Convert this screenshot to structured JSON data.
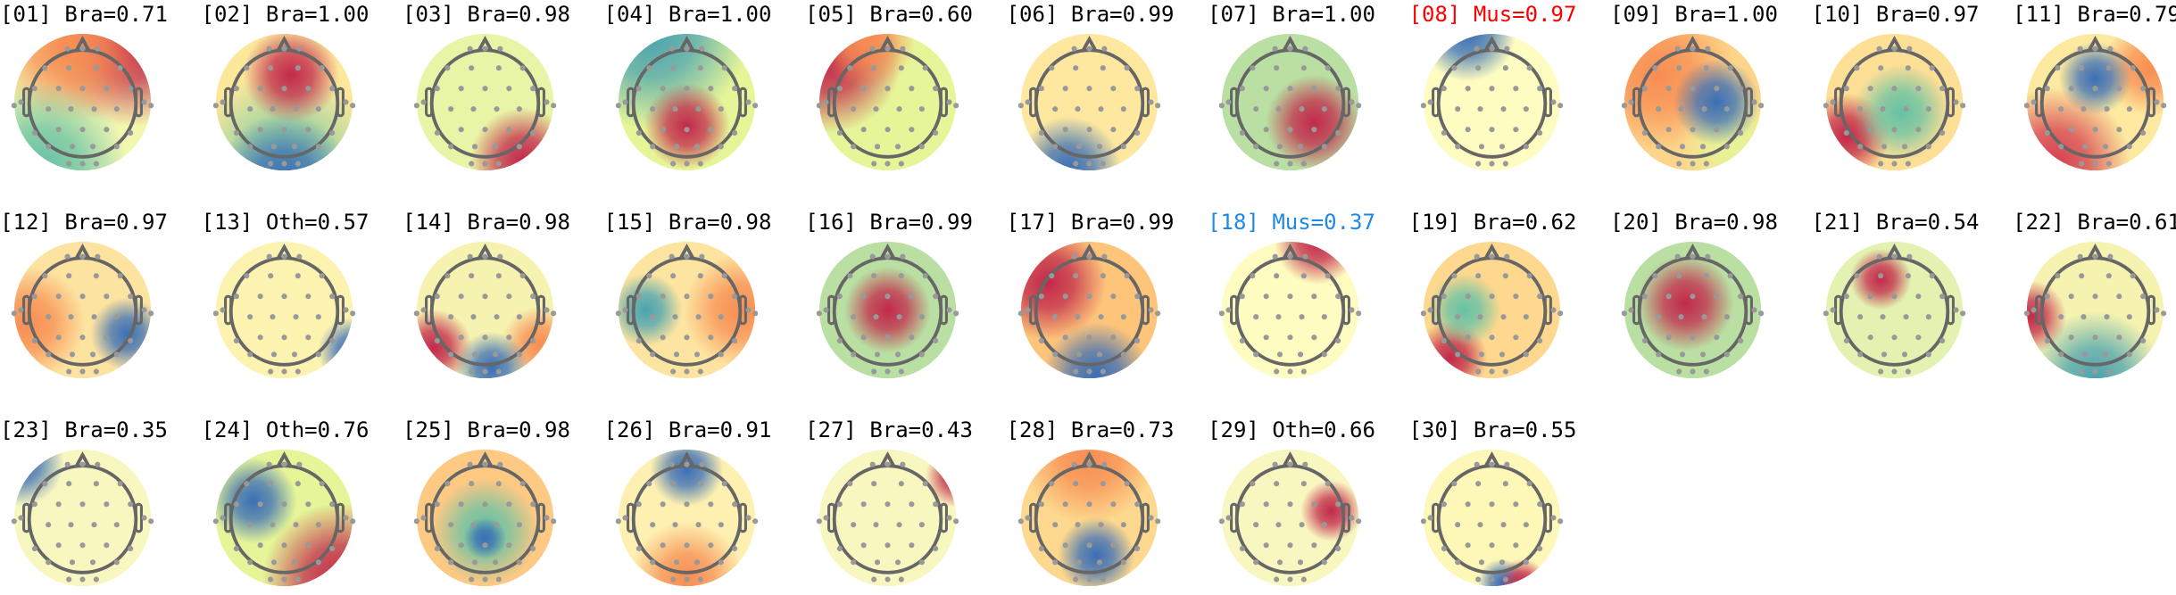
{
  "chart_data": {
    "type": "heatmap",
    "description_kind": "topomap-grid",
    "colormap": "spectral (red positive, blue negative)",
    "label_colors": {
      "default": "#000000",
      "Mus_high": "#ff0000",
      "Mus_low": "#1e88e5"
    },
    "components": [
      {
        "title": "[01] Bra=0.71",
        "label": "Bra",
        "score": 0.71,
        "color": "#000000"
      },
      {
        "title": "[02] Bra=1.00",
        "label": "Bra",
        "score": 1.0,
        "color": "#000000"
      },
      {
        "title": "[03] Bra=0.98",
        "label": "Bra",
        "score": 0.98,
        "color": "#000000"
      },
      {
        "title": "[04] Bra=1.00",
        "label": "Bra",
        "score": 1.0,
        "color": "#000000"
      },
      {
        "title": "[05] Bra=0.60",
        "label": "Bra",
        "score": 0.6,
        "color": "#000000"
      },
      {
        "title": "[06] Bra=0.99",
        "label": "Bra",
        "score": 0.99,
        "color": "#000000"
      },
      {
        "title": "[07] Bra=1.00",
        "label": "Bra",
        "score": 1.0,
        "color": "#000000"
      },
      {
        "title": "[08] Mus=0.97",
        "label": "Mus",
        "score": 0.97,
        "color": "#ff0000"
      },
      {
        "title": "[09] Bra=1.00",
        "label": "Bra",
        "score": 1.0,
        "color": "#000000"
      },
      {
        "title": "[10] Bra=0.97",
        "label": "Bra",
        "score": 0.97,
        "color": "#000000"
      },
      {
        "title": "[11] Bra=0.79",
        "label": "Bra",
        "score": 0.79,
        "color": "#000000"
      },
      {
        "title": "[12] Bra=0.97",
        "label": "Bra",
        "score": 0.97,
        "color": "#000000"
      },
      {
        "title": "[13] Oth=0.57",
        "label": "Oth",
        "score": 0.57,
        "color": "#000000"
      },
      {
        "title": "[14] Bra=0.98",
        "label": "Bra",
        "score": 0.98,
        "color": "#000000"
      },
      {
        "title": "[15] Bra=0.98",
        "label": "Bra",
        "score": 0.98,
        "color": "#000000"
      },
      {
        "title": "[16] Bra=0.99",
        "label": "Bra",
        "score": 0.99,
        "color": "#000000"
      },
      {
        "title": "[17] Bra=0.99",
        "label": "Bra",
        "score": 0.99,
        "color": "#000000"
      },
      {
        "title": "[18] Mus=0.37",
        "label": "Mus",
        "score": 0.37,
        "color": "#1e88e5"
      },
      {
        "title": "[19] Bra=0.62",
        "label": "Bra",
        "score": 0.62,
        "color": "#000000"
      },
      {
        "title": "[20] Bra=0.98",
        "label": "Bra",
        "score": 0.98,
        "color": "#000000"
      },
      {
        "title": "[21] Bra=0.54",
        "label": "Bra",
        "score": 0.54,
        "color": "#000000"
      },
      {
        "title": "[22] Bra=0.61",
        "label": "Bra",
        "score": 0.61,
        "color": "#000000"
      },
      {
        "title": "[23] Bra=0.35",
        "label": "Bra",
        "score": 0.35,
        "color": "#000000"
      },
      {
        "title": "[24] Oth=0.76",
        "label": "Oth",
        "score": 0.76,
        "color": "#000000"
      },
      {
        "title": "[25] Bra=0.98",
        "label": "Bra",
        "score": 0.98,
        "color": "#000000"
      },
      {
        "title": "[26] Bra=0.91",
        "label": "Bra",
        "score": 0.91,
        "color": "#000000"
      },
      {
        "title": "[27] Bra=0.43",
        "label": "Bra",
        "score": 0.43,
        "color": "#000000"
      },
      {
        "title": "[28] Bra=0.73",
        "label": "Bra",
        "score": 0.73,
        "color": "#000000"
      },
      {
        "title": "[29] Oth=0.66",
        "label": "Oth",
        "score": 0.66,
        "color": "#000000"
      },
      {
        "title": "[30] Bra=0.55",
        "label": "Bra",
        "score": 0.55,
        "color": "#000000"
      }
    ]
  }
}
